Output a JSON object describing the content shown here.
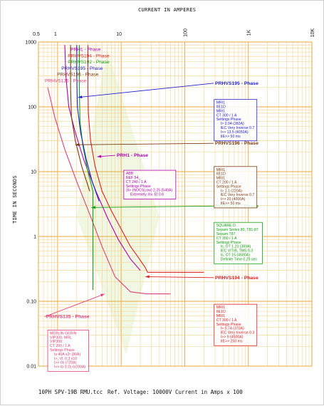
{
  "header": {
    "top_axis_title": "CURRENT IN AMPERES",
    "y_axis_title": "TIME IN SECONDS"
  },
  "footer": {
    "drawing_name": "10PH SPV-19B RMU.tcc",
    "ref_voltage": "Ref. Voltage: 10000V",
    "current_note": "Current in Amps x 100"
  },
  "chart_data": {
    "type": "line",
    "title": "CURRENT IN AMPERES",
    "xlabel": "CURRENT IN AMPERES",
    "ylabel": "TIME IN SECONDS",
    "xscale": "log",
    "yscale": "log",
    "xlim": [
      0.5,
      10000
    ],
    "ylim": [
      0.01,
      1000
    ],
    "grid": true,
    "x_ticks": [
      {
        "v": 0.5,
        "label": "0.5"
      },
      {
        "v": 1,
        "label": "1"
      },
      {
        "v": 10,
        "label": "10"
      },
      {
        "v": 100,
        "label": "100"
      },
      {
        "v": 1000,
        "label": "1K"
      },
      {
        "v": 10000,
        "label": "10K"
      }
    ],
    "y_ticks": [
      {
        "v": 1000,
        "label": "1000"
      },
      {
        "v": 100,
        "label": "100"
      },
      {
        "v": 10,
        "label": "10"
      },
      {
        "v": 1,
        "label": "1"
      },
      {
        "v": 0.1,
        "label": "0.10"
      },
      {
        "v": 0.01,
        "label": "0.01"
      }
    ],
    "series": [
      {
        "name": "PRHVS135 - Phase",
        "color": "#e0407a",
        "points": [
          [
            0.7,
            200
          ],
          [
            0.9,
            70
          ],
          [
            1.3,
            22
          ],
          [
            2.0,
            7
          ],
          [
            3.2,
            2.2
          ],
          [
            5.0,
            0.7
          ],
          [
            8.0,
            0.24
          ],
          [
            14,
            0.14
          ],
          [
            25,
            0.13
          ],
          [
            60,
            0.13
          ]
        ]
      },
      {
        "name": "PRH1 - Phase",
        "color": "#b000b0",
        "points": [
          [
            1.3,
            900
          ],
          [
            1.35,
            300
          ],
          [
            1.5,
            100
          ],
          [
            1.9,
            40
          ],
          [
            2.6,
            15
          ],
          [
            4.0,
            5
          ],
          [
            6.0,
            2
          ],
          [
            9.0,
            0.9
          ],
          [
            14,
            0.45
          ],
          [
            20,
            0.3
          ]
        ]
      },
      {
        "name": "PRHVS194 - Phase",
        "color": "#e02020",
        "points": [
          [
            3.0,
            900
          ],
          [
            3.0,
            200
          ],
          [
            3.05,
            80
          ],
          [
            3.3,
            30
          ],
          [
            3.9,
            12
          ],
          [
            5.0,
            5
          ],
          [
            7.0,
            2.5
          ],
          [
            10,
            1.3
          ],
          [
            14,
            0.7
          ],
          [
            18,
            0.5
          ],
          [
            24,
            0.33
          ],
          [
            26,
            0.28
          ],
          [
            28,
            0.28
          ],
          [
            200,
            0.28
          ]
        ]
      },
      {
        "name": "PRHVS192 - Phase",
        "color": "#10a010",
        "points": [
          [
            2.2,
            900
          ],
          [
            2.2,
            200
          ],
          [
            2.25,
            60
          ],
          [
            2.5,
            25
          ],
          [
            3.0,
            10
          ],
          [
            3.6,
            5
          ],
          [
            3.6,
            0.15
          ]
        ]
      },
      {
        "name": "PRHVS195 - Phase",
        "color": "#2020d0",
        "points": [
          [
            2.0,
            900
          ],
          [
            2.0,
            300
          ],
          [
            2.05,
            100
          ],
          [
            2.3,
            40
          ],
          [
            2.8,
            16
          ],
          [
            3.5,
            7
          ],
          [
            4.5,
            3.5
          ]
        ]
      },
      {
        "name": "PRHVS196 - Phase",
        "color": "#7a3a10",
        "points": [
          [
            1.6,
            900
          ],
          [
            1.6,
            200
          ],
          [
            1.65,
            70
          ],
          [
            1.9,
            30
          ],
          [
            2.4,
            12
          ],
          [
            3.2,
            5
          ]
        ]
      }
    ],
    "curve_labels": [
      {
        "text": "PRH1 - Phase",
        "color": "#b000b0",
        "v": [
          1.6,
          730
        ]
      },
      {
        "text": "PRHVS194 - Phase",
        "color": "#e02020",
        "v": [
          1.45,
          580
        ]
      },
      {
        "text": "PRHVS192 - Phase",
        "color": "#10a010",
        "v": [
          1.45,
          470
        ]
      },
      {
        "text": "PRHVS195 - Phase",
        "color": "#2020d0",
        "v": [
          1.15,
          375
        ]
      },
      {
        "text": "PRHVS196 - Phase",
        "color": "#7a3a10",
        "v": [
          0.98,
          300
        ]
      },
      {
        "text": "PRHVS135 - Phase",
        "color": "#e0407a",
        "v": [
          0.63,
          240
        ]
      }
    ],
    "callouts": [
      {
        "text": "PRHVS195 - Phase",
        "color": "#2020d0",
        "label_at": [
          300,
          220
        ],
        "target": [
          2.1,
          140
        ]
      },
      {
        "text": "PRHVS196 - Phase",
        "color": "#7a3a10",
        "label_at": [
          300,
          26
        ],
        "target": [
          1.9,
          26
        ]
      },
      {
        "text": "PRH1 - Phase",
        "color": "#b000b0",
        "label_at": [
          8.5,
          17
        ],
        "target": [
          4.2,
          17
        ]
      },
      {
        "text": "PRHVS192 - Phase",
        "color": "#10a010",
        "label_at": [
          300,
          2.8
        ],
        "target": [
          3.4,
          2.8
        ]
      },
      {
        "text": "PRHVS194 - Phase",
        "color": "#e02020",
        "label_at": [
          300,
          0.22
        ],
        "target": [
          24,
          0.24
        ]
      },
      {
        "text": "PRHVS135 - Phase",
        "color": "#e0407a",
        "label_at": [
          0.66,
          0.055
        ],
        "target": [
          5.5,
          0.13
        ]
      }
    ],
    "info_boxes": [
      {
        "color": "#2020d0",
        "anchor": [
          290,
          130
        ],
        "lines": [
          "MRI1",
          "IIE1D",
          "MRI1",
          "CT 300 / 1 A",
          "Settings Phase",
          "I> 0.94 (282A)",
          "IEC Very Inverse 0.7",
          "I>> 13.5 (4050A)",
          "tIE>> 50 ms"
        ]
      },
      {
        "color": "#7a3a10",
        "anchor": [
          290,
          12
        ],
        "lines": [
          "MRI1",
          "IIE1D",
          "MRI1",
          "CT 200 / 1 A",
          "Settings Phase",
          "I> 1.1 (220A)",
          "IEC Very Inverse 0.7",
          "I>> 20 (4000A)",
          "tIE>> 50 ms"
        ]
      },
      {
        "color": "#b000b0",
        "anchor": [
          11,
          10.5
        ],
        "lines": [
          "ABB",
          "REF 54_",
          "CT 240 / 1 A",
          "Settings Phase",
          "3I> (NOCSLow) 2.25 (540A)",
          "Extremely Inv. El 0.6"
        ]
      },
      {
        "color": "#10a010",
        "anchor": [
          290,
          1.65
        ],
        "lines": [
          "SQUARE D",
          "Sepam Series 80, T81-87",
          "Sepam T87",
          "CT 300 / 1 A",
          "Settings Phase",
          "Is, OT 1.23 (369A)",
          "IEC VIT/B, TMS 0.3",
          "Is, OT 15 (4500A)",
          "Definite Time 0.25 sec"
        ]
      },
      {
        "color": "#e02020",
        "anchor": [
          290,
          0.09
        ],
        "lines": [
          "MRI1",
          "IIE1D",
          "MRI1",
          "CT 300 / 1 A",
          "Settings Phase",
          "I> 0.74 (370A)",
          "IEC Very Inverse 0.3",
          "I>> 9 (4500A)",
          "tIE>> 250 ms"
        ]
      },
      {
        "color": "#e0407a",
        "anchor": [
          0.7,
          0.036
        ],
        "lines": [
          "MERLIN GERIN",
          "VIP300, MRL",
          "VIP300",
          "CT 200 / 1 A",
          "Settings Phase",
          "Is 40A x2r (80A)",
          "I>, VI, 0.3 x10",
          "I>> 0s (720A)",
          "I>> to 0.2s (x200A)"
        ]
      }
    ]
  }
}
